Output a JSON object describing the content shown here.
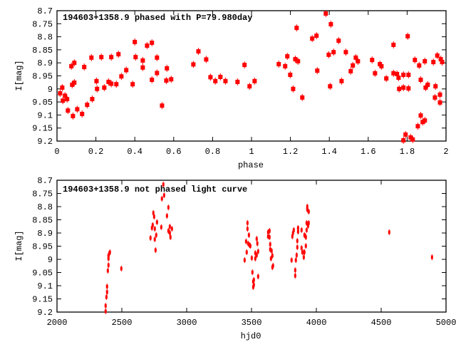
{
  "chart_data": [
    {
      "type": "scatter",
      "title": "194603+1358.9 phased with P=79.980day",
      "xlabel": "phase",
      "ylabel": "I[mag]",
      "xlim": [
        0,
        2
      ],
      "ylim": [
        9.2,
        8.7
      ],
      "y_inverted": true,
      "xticks": [
        "0",
        "0.2",
        "0.4",
        "0.6",
        "0.8",
        "1",
        "1.2",
        "1.4",
        "1.6",
        "1.8",
        "2"
      ],
      "yticks": [
        "8.7",
        "8.75",
        "8.8",
        "8.85",
        "8.9",
        "8.95",
        "9",
        "9.05",
        "9.1",
        "9.15",
        "9.2"
      ],
      "color": "#ff0000",
      "points": [
        [
          0.016,
          9.017
        ],
        [
          0.027,
          8.995
        ],
        [
          0.03,
          9.045
        ],
        [
          0.041,
          9.026
        ],
        [
          0.052,
          9.039
        ],
        [
          0.056,
          9.083
        ],
        [
          0.074,
          8.913
        ],
        [
          0.078,
          8.984
        ],
        [
          0.082,
          9.104
        ],
        [
          0.089,
          8.9
        ],
        [
          0.089,
          8.976
        ],
        [
          0.104,
          9.078
        ],
        [
          0.129,
          9.096
        ],
        [
          0.14,
          8.916
        ],
        [
          0.155,
          9.061
        ],
        [
          0.177,
          8.88
        ],
        [
          0.181,
          9.039
        ],
        [
          0.203,
          8.97
        ],
        [
          0.206,
          9.0
        ],
        [
          0.228,
          8.878
        ],
        [
          0.243,
          8.995
        ],
        [
          0.265,
          8.973
        ],
        [
          0.279,
          8.878
        ],
        [
          0.279,
          8.98
        ],
        [
          0.305,
          8.982
        ],
        [
          0.316,
          8.867
        ],
        [
          0.331,
          8.952
        ],
        [
          0.356,
          8.928
        ],
        [
          0.389,
          8.982
        ],
        [
          0.4,
          8.82
        ],
        [
          0.404,
          8.878
        ],
        [
          0.441,
          8.891
        ],
        [
          0.441,
          8.918
        ],
        [
          0.463,
          8.834
        ],
        [
          0.488,
          8.823
        ],
        [
          0.488,
          8.965
        ],
        [
          0.514,
          8.88
        ],
        [
          0.514,
          8.939
        ],
        [
          0.54,
          9.064
        ],
        [
          0.562,
          8.968
        ],
        [
          0.565,
          8.921
        ],
        [
          0.587,
          8.963
        ],
        [
          0.701,
          8.906
        ],
        [
          0.727,
          8.856
        ],
        [
          0.767,
          8.887
        ],
        [
          0.789,
          8.955
        ],
        [
          0.814,
          8.97
        ],
        [
          0.84,
          8.954
        ],
        [
          0.866,
          8.97
        ],
        [
          0.928,
          8.973
        ],
        [
          0.964,
          8.908
        ],
        [
          0.99,
          8.99
        ],
        [
          1.016,
          8.97
        ],
        [
          1.14,
          8.905
        ],
        [
          1.173,
          8.913
        ],
        [
          1.184,
          8.875
        ],
        [
          1.199,
          8.946
        ],
        [
          1.214,
          9.0
        ],
        [
          1.225,
          8.886
        ],
        [
          1.232,
          8.766
        ],
        [
          1.239,
          8.894
        ],
        [
          1.261,
          9.033
        ],
        [
          1.312,
          8.807
        ],
        [
          1.334,
          8.796
        ],
        [
          1.338,
          8.93
        ],
        [
          1.382,
          8.711
        ],
        [
          1.397,
          8.869
        ],
        [
          1.404,
          8.99
        ],
        [
          1.408,
          8.752
        ],
        [
          1.422,
          8.859
        ],
        [
          1.448,
          8.815
        ],
        [
          1.463,
          8.97
        ],
        [
          1.485,
          8.859
        ],
        [
          1.51,
          8.932
        ],
        [
          1.521,
          8.91
        ],
        [
          1.536,
          8.88
        ],
        [
          1.547,
          8.894
        ],
        [
          1.62,
          8.889
        ],
        [
          1.635,
          8.94
        ],
        [
          1.66,
          8.905
        ],
        [
          1.668,
          8.913
        ],
        [
          1.693,
          8.96
        ],
        [
          1.73,
          8.831
        ],
        [
          1.73,
          8.94
        ],
        [
          1.748,
          8.943
        ],
        [
          1.756,
          8.957
        ],
        [
          1.759,
          9.0
        ],
        [
          1.781,
          8.995
        ],
        [
          1.781,
          8.946
        ],
        [
          1.781,
          9.197
        ],
        [
          1.792,
          9.175
        ],
        [
          1.803,
          8.798
        ],
        [
          1.807,
          8.946
        ],
        [
          1.807,
          8.998
        ],
        [
          1.818,
          9.186
        ],
        [
          1.829,
          9.194
        ],
        [
          1.84,
          8.889
        ],
        [
          1.855,
          9.143
        ],
        [
          1.862,
          8.91
        ],
        [
          1.87,
          8.965
        ],
        [
          1.87,
          9.102
        ],
        [
          1.88,
          9.127
        ],
        [
          1.891,
          9.121
        ],
        [
          1.891,
          8.894
        ],
        [
          1.895,
          8.995
        ],
        [
          1.906,
          8.984
        ],
        [
          1.935,
          8.897
        ],
        [
          1.946,
          8.99
        ],
        [
          1.943,
          9.033
        ],
        [
          1.955,
          8.872
        ],
        [
          1.969,
          9.022
        ],
        [
          1.969,
          9.052
        ],
        [
          1.973,
          8.886
        ],
        [
          1.98,
          8.897
        ]
      ]
    },
    {
      "type": "scatter",
      "title": "194603+1358.9 not phased light curve",
      "xlabel": "hjd0",
      "ylabel": "I[mag]",
      "xlim": [
        2000,
        5000
      ],
      "ylim": [
        9.2,
        8.7
      ],
      "y_inverted": true,
      "xticks": [
        "2000",
        "2500",
        "3000",
        "3500",
        "4000",
        "4500",
        "5000"
      ],
      "yticks": [
        "8.7",
        "8.75",
        "8.8",
        "8.85",
        "8.9",
        "8.95",
        "9",
        "9.05",
        "9.1",
        "9.15",
        "9.2"
      ],
      "color": "#ff0000",
      "points": [
        [
          2375,
          9.197
        ],
        [
          2375,
          9.176
        ],
        [
          2381,
          9.143
        ],
        [
          2386,
          9.124
        ],
        [
          2386,
          9.103
        ],
        [
          2392,
          9.043
        ],
        [
          2397,
          9.022
        ],
        [
          2397,
          8.997
        ],
        [
          2397,
          8.986
        ],
        [
          2403,
          8.978
        ],
        [
          2408,
          8.973
        ],
        [
          2496,
          9.035
        ],
        [
          2721,
          8.919
        ],
        [
          2732,
          8.881
        ],
        [
          2738,
          8.87
        ],
        [
          2743,
          8.824
        ],
        [
          2749,
          8.838
        ],
        [
          2754,
          8.884
        ],
        [
          2754,
          8.924
        ],
        [
          2760,
          8.965
        ],
        [
          2765,
          8.908
        ],
        [
          2771,
          8.859
        ],
        [
          2804,
          8.878
        ],
        [
          2809,
          8.77
        ],
        [
          2820,
          8.716
        ],
        [
          2826,
          8.757
        ],
        [
          2848,
          8.835
        ],
        [
          2859,
          8.803
        ],
        [
          2859,
          8.892
        ],
        [
          2870,
          8.876
        ],
        [
          2870,
          8.9
        ],
        [
          2875,
          8.916
        ],
        [
          2886,
          8.884
        ],
        [
          3447,
          9.003
        ],
        [
          3463,
          8.973
        ],
        [
          3458,
          8.932
        ],
        [
          3469,
          8.862
        ],
        [
          3469,
          8.884
        ],
        [
          3474,
          8.94
        ],
        [
          3480,
          8.908
        ],
        [
          3485,
          8.946
        ],
        [
          3491,
          8.949
        ],
        [
          3502,
          8.995
        ],
        [
          3507,
          9.049
        ],
        [
          3513,
          9.084
        ],
        [
          3513,
          9.105
        ],
        [
          3518,
          9.078
        ],
        [
          3518,
          9.097
        ],
        [
          3529,
          8.976
        ],
        [
          3529,
          8.997
        ],
        [
          3540,
          8.984
        ],
        [
          3540,
          8.922
        ],
        [
          3545,
          8.94
        ],
        [
          3551,
          8.97
        ],
        [
          3551,
          9.065
        ],
        [
          3628,
          8.897
        ],
        [
          3639,
          8.892
        ],
        [
          3628,
          8.913
        ],
        [
          3639,
          8.916
        ],
        [
          3644,
          8.943
        ],
        [
          3644,
          8.962
        ],
        [
          3655,
          8.968
        ],
        [
          3650,
          8.997
        ],
        [
          3661,
          8.986
        ],
        [
          3661,
          9.03
        ],
        [
          3666,
          9.024
        ],
        [
          3809,
          9.003
        ],
        [
          3815,
          8.913
        ],
        [
          3820,
          8.9
        ],
        [
          3826,
          8.889
        ],
        [
          3837,
          9.041
        ],
        [
          3837,
          9.062
        ],
        [
          3842,
          9.003
        ],
        [
          3848,
          8.984
        ],
        [
          3853,
          8.93
        ],
        [
          3853,
          8.954
        ],
        [
          3859,
          8.881
        ],
        [
          3859,
          8.895
        ],
        [
          3886,
          8.889
        ],
        [
          3886,
          8.957
        ],
        [
          3892,
          8.973
        ],
        [
          3903,
          8.992
        ],
        [
          3903,
          8.973
        ],
        [
          3908,
          8.973
        ],
        [
          3908,
          8.908
        ],
        [
          3914,
          8.911
        ],
        [
          3919,
          8.916
        ],
        [
          3919,
          8.949
        ],
        [
          3925,
          8.889
        ],
        [
          3925,
          8.862
        ],
        [
          3930,
          8.8
        ],
        [
          3930,
          8.811
        ],
        [
          3941,
          8.819
        ],
        [
          3936,
          8.873
        ],
        [
          3941,
          8.862
        ],
        [
          4562,
          8.897
        ],
        [
          4892,
          8.992
        ]
      ]
    }
  ]
}
